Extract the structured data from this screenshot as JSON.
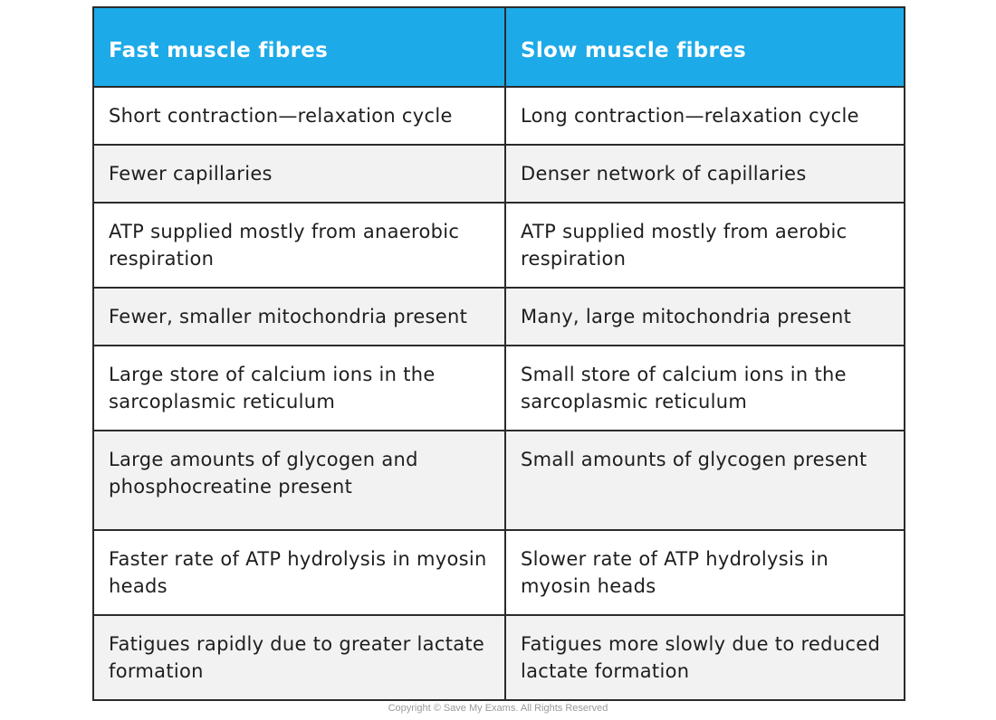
{
  "table": {
    "headers": [
      "Fast muscle fibres",
      "Slow muscle fibres"
    ],
    "rows": [
      [
        "Short contraction—relaxation cycle",
        "Long contraction—relaxation cycle"
      ],
      [
        "Fewer capillaries",
        "Denser network of capillaries"
      ],
      [
        "ATP supplied mostly from anaerobic respiration",
        "ATP supplied mostly from aerobic respiration"
      ],
      [
        "Fewer, smaller mitochondria present",
        "Many, large mitochondria present"
      ],
      [
        "Large store of calcium ions in the sarcoplasmic reticulum",
        "Small store of calcium ions in the sarcoplasmic reticulum"
      ],
      [
        "Large amounts of glycogen and phosphocreatine present",
        "Small amounts of glycogen present"
      ],
      [
        "Faster rate of ATP hydrolysis in myosin heads",
        "Slower rate of ATP hydrolysis in myosin heads"
      ],
      [
        "Fatigues rapidly due to greater lactate formation",
        "Fatigues more slowly due to reduced lactate formation"
      ]
    ],
    "header_color": "#1daae8",
    "shaded_row_color": "#f2f2f2",
    "border_color": "#2b2b2b"
  },
  "footer": {
    "copyright": "Copyright © Save My Exams. All Rights Reserved"
  }
}
